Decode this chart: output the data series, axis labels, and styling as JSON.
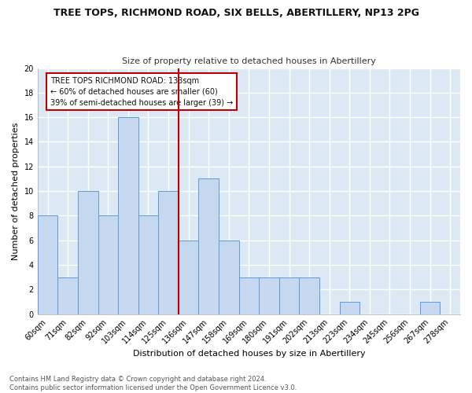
{
  "title": "TREE TOPS, RICHMOND ROAD, SIX BELLS, ABERTILLERY, NP13 2PG",
  "subtitle": "Size of property relative to detached houses in Abertillery",
  "xlabel": "Distribution of detached houses by size in Abertillery",
  "ylabel": "Number of detached properties",
  "categories": [
    "60sqm",
    "71sqm",
    "82sqm",
    "92sqm",
    "103sqm",
    "114sqm",
    "125sqm",
    "136sqm",
    "147sqm",
    "158sqm",
    "169sqm",
    "180sqm",
    "191sqm",
    "202sqm",
    "213sqm",
    "223sqm",
    "234sqm",
    "245sqm",
    "256sqm",
    "267sqm",
    "278sqm"
  ],
  "values": [
    8,
    3,
    10,
    8,
    16,
    8,
    10,
    6,
    11,
    6,
    3,
    3,
    3,
    3,
    0,
    1,
    0,
    0,
    0,
    1,
    0
  ],
  "bar_color": "#c5d8f0",
  "bar_edge_color": "#5b9bd5",
  "vline_x": 7,
  "vline_color": "#c00000",
  "ylim": [
    0,
    20
  ],
  "yticks": [
    0,
    2,
    4,
    6,
    8,
    10,
    12,
    14,
    16,
    18,
    20
  ],
  "annotation_text": "TREE TOPS RICHMOND ROAD: 133sqm\n← 60% of detached houses are smaller (60)\n39% of semi-detached houses are larger (39) →",
  "annotation_box_color": "#ffffff",
  "annotation_box_edge_color": "#c00000",
  "footer_line1": "Contains HM Land Registry data © Crown copyright and database right 2024.",
  "footer_line2": "Contains public sector information licensed under the Open Government Licence v3.0.",
  "fig_background_color": "#ffffff",
  "plot_background_color": "#dce9f5",
  "grid_color": "#ffffff",
  "title_fontsize": 9,
  "subtitle_fontsize": 8,
  "ylabel_fontsize": 8,
  "xlabel_fontsize": 8,
  "tick_fontsize": 7,
  "annotation_fontsize": 7,
  "footer_fontsize": 6
}
